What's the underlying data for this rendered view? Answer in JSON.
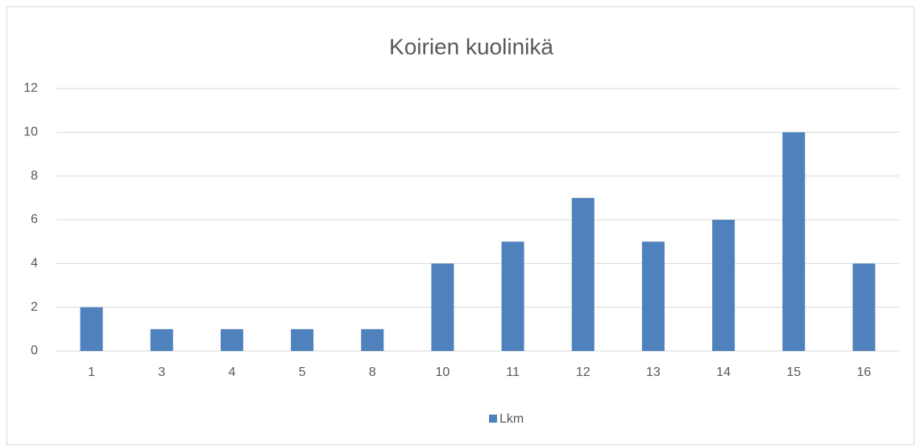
{
  "chart_data": {
    "type": "bar",
    "title": "Koirien kuolinikä",
    "categories": [
      "1",
      "3",
      "4",
      "5",
      "8",
      "10",
      "11",
      "12",
      "13",
      "14",
      "15",
      "16"
    ],
    "series": [
      {
        "name": "Lkm",
        "color": "#4f81bd",
        "values": [
          2,
          1,
          1,
          1,
          1,
          4,
          5,
          7,
          5,
          6,
          10,
          4
        ]
      }
    ],
    "ylim": [
      0,
      12
    ],
    "yticks": [
      0,
      2,
      4,
      6,
      8,
      10,
      12
    ],
    "grid": true,
    "legend": "bottom"
  }
}
